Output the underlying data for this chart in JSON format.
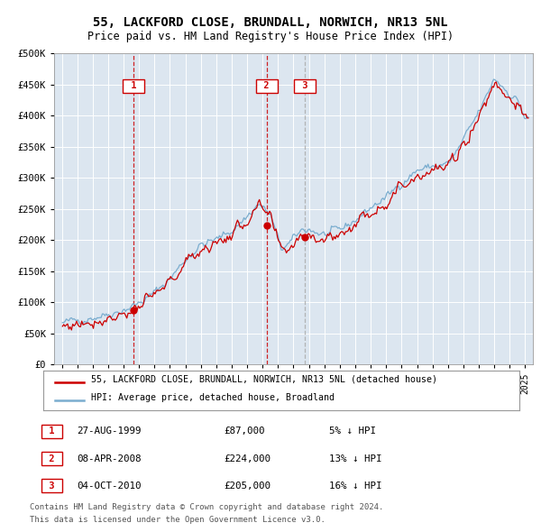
{
  "title": "55, LACKFORD CLOSE, BRUNDALL, NORWICH, NR13 5NL",
  "subtitle": "Price paid vs. HM Land Registry's House Price Index (HPI)",
  "legend_line1": "55, LACKFORD CLOSE, BRUNDALL, NORWICH, NR13 5NL (detached house)",
  "legend_line2": "HPI: Average price, detached house, Broadland",
  "footer1": "Contains HM Land Registry data © Crown copyright and database right 2024.",
  "footer2": "This data is licensed under the Open Government Licence v3.0.",
  "transactions": [
    {
      "num": 1,
      "date": "27-AUG-1999",
      "price": 87000,
      "pct": "5%",
      "dir": "↓"
    },
    {
      "num": 2,
      "date": "08-APR-2008",
      "price": 224000,
      "pct": "13%",
      "dir": "↓"
    },
    {
      "num": 3,
      "date": "04-OCT-2010",
      "price": 205000,
      "pct": "16%",
      "dir": "↓"
    }
  ],
  "transaction_dates_decimal": [
    1999.65,
    2008.27,
    2010.75
  ],
  "transaction_prices": [
    87000,
    224000,
    205000
  ],
  "hpi_color": "#7aadcf",
  "price_color": "#cc0000",
  "vline_color_red": "#cc0000",
  "vline_color_gray": "#aaaaaa",
  "bg_color": "#dce6f0",
  "ylim": [
    0,
    500000
  ],
  "yticks": [
    0,
    50000,
    100000,
    150000,
    200000,
    250000,
    300000,
    350000,
    400000,
    450000,
    500000
  ],
  "xlim_start": 1994.5,
  "xlim_end": 2025.5,
  "hpi_anchors_x": [
    1995.0,
    1996.0,
    1997.0,
    1998.0,
    1999.0,
    2000.0,
    2001.0,
    2002.0,
    2003.0,
    2004.0,
    2005.0,
    2006.0,
    2007.0,
    2007.75,
    2008.5,
    2009.2,
    2009.8,
    2010.5,
    2011.0,
    2011.5,
    2012.0,
    2013.0,
    2014.0,
    2015.0,
    2016.0,
    2017.0,
    2018.0,
    2019.0,
    2020.0,
    2020.5,
    2021.0,
    2021.5,
    2022.0,
    2022.5,
    2023.0,
    2023.5,
    2024.0,
    2024.5,
    2025.0
  ],
  "hpi_anchors_y": [
    67000,
    71000,
    76000,
    81000,
    88000,
    98000,
    115000,
    138000,
    168000,
    192000,
    200000,
    215000,
    238000,
    258000,
    240000,
    185000,
    195000,
    215000,
    218000,
    212000,
    208000,
    215000,
    232000,
    252000,
    268000,
    292000,
    312000,
    318000,
    322000,
    338000,
    360000,
    382000,
    405000,
    430000,
    460000,
    448000,
    435000,
    425000,
    395000
  ]
}
